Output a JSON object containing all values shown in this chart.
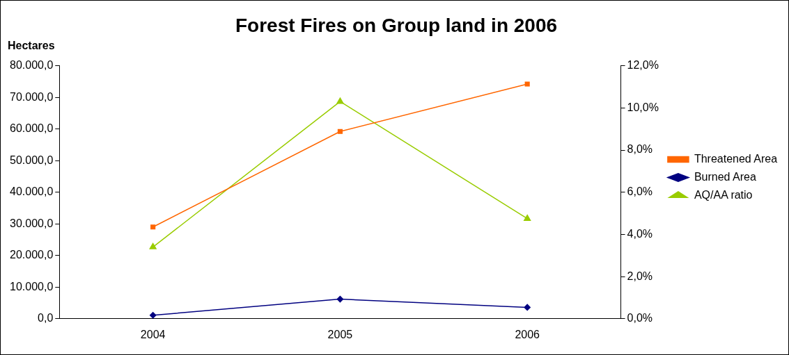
{
  "chart_data": {
    "type": "line",
    "title": "Forest Fires on Group land in 2006",
    "ylabel": "Hectares",
    "categories": [
      "2004",
      "2005",
      "2006"
    ],
    "series": [
      {
        "name": "Threatened Area",
        "color": "#ff6600",
        "marker": "square",
        "values": [
          29000,
          59200,
          74200
        ]
      },
      {
        "name": "Burned Area",
        "color": "#000080",
        "marker": "diamond",
        "values": [
          1100,
          6200,
          3600
        ]
      },
      {
        "name": "AQ/AA ratio",
        "color": "#99cc00",
        "marker": "triangle",
        "axis": "y2",
        "values": [
          3.4,
          10.3,
          4.75
        ]
      }
    ],
    "ylim": [
      0,
      80000
    ],
    "yticks": [
      {
        "value": 0,
        "label": "0,0"
      },
      {
        "value": 10000,
        "label": "10.000,0"
      },
      {
        "value": 20000,
        "label": "20.000,0"
      },
      {
        "value": 30000,
        "label": "30.000,0"
      },
      {
        "value": 40000,
        "label": "40.000,0"
      },
      {
        "value": 50000,
        "label": "50.000,0"
      },
      {
        "value": 60000,
        "label": "60.000,0"
      },
      {
        "value": 70000,
        "label": "70.000,0"
      },
      {
        "value": 80000,
        "label": "80.000,0"
      }
    ],
    "y2lim": [
      0,
      12
    ],
    "y2ticks": [
      {
        "value": 0,
        "label": "0,0%"
      },
      {
        "value": 2,
        "label": "2,0%"
      },
      {
        "value": 4,
        "label": "4,0%"
      },
      {
        "value": 6,
        "label": "6,0%"
      },
      {
        "value": 8,
        "label": "8,0%"
      },
      {
        "value": 10,
        "label": "10,0%"
      },
      {
        "value": 12,
        "label": "12,0%"
      }
    ],
    "grid": false,
    "legend": "right",
    "line_style": "solid"
  }
}
